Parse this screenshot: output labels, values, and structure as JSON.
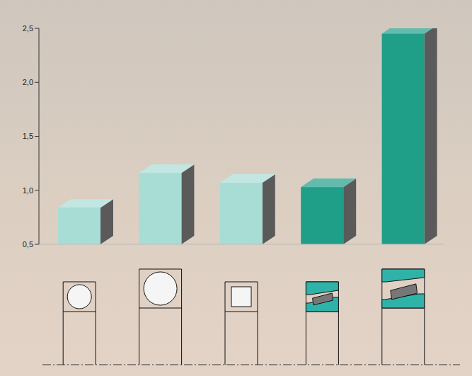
{
  "chart_data": {
    "type": "bar",
    "categories": [
      null,
      null,
      null,
      null,
      null
    ],
    "values": [
      0.84,
      1.16,
      1.07,
      1.03,
      2.45
    ],
    "colors": [
      "#a8ddd6",
      "#a8ddd6",
      "#a8ddd6",
      "#1f9e88",
      "#1f9e88"
    ],
    "ylim": [
      0.5,
      2.5
    ],
    "yticks": [
      {
        "value": 0.5,
        "label": "0,5"
      },
      {
        "value": 1.0,
        "label": "1,0"
      },
      {
        "value": 1.5,
        "label": "1,5"
      },
      {
        "value": 2.0,
        "label": "2,0"
      },
      {
        "value": 2.5,
        "label": "2,5"
      }
    ],
    "grid": false,
    "tick_labels": "y"
  }
}
